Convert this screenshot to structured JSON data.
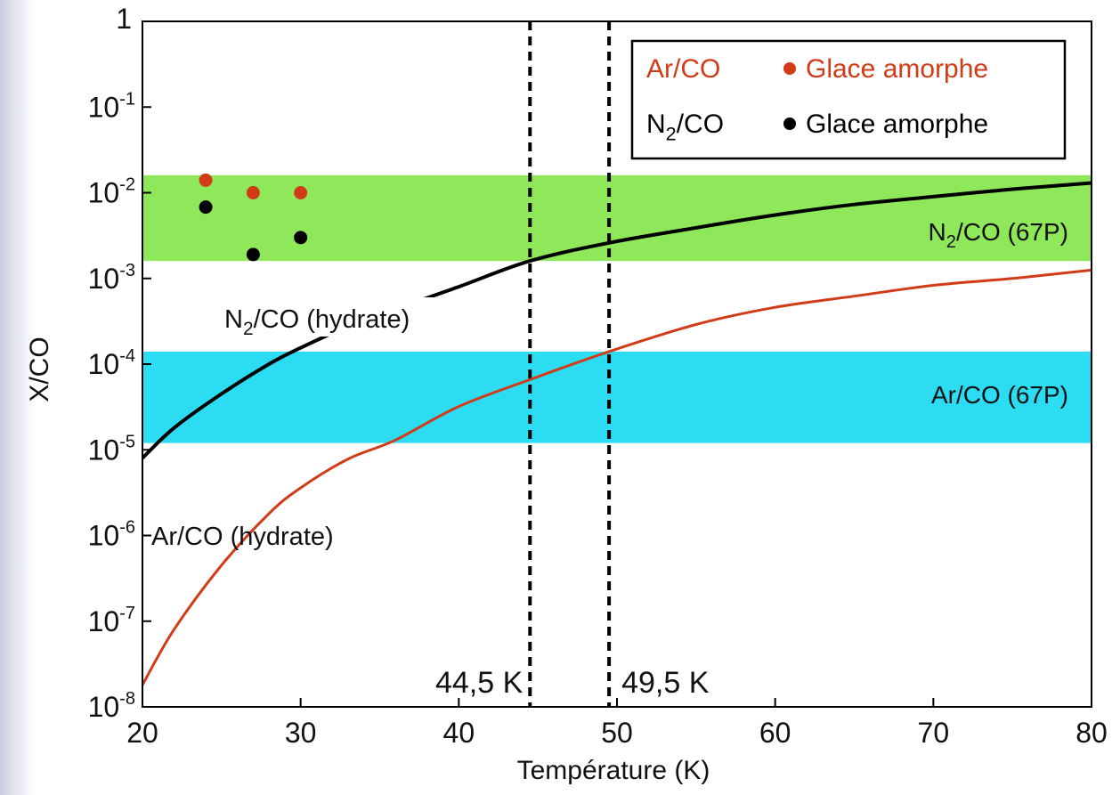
{
  "chart_data": {
    "type": "line",
    "xlabel": "Température (K)",
    "ylabel": "X/CO",
    "xlim": [
      20,
      80
    ],
    "ylim": [
      1e-08,
      1
    ],
    "yscale": "log",
    "grid": false,
    "x_ticks": [
      20,
      30,
      40,
      50,
      60,
      70,
      80
    ],
    "y_ticks": [
      {
        "value": 1,
        "base": "1",
        "exp": ""
      },
      {
        "value": 0.1,
        "base": "10",
        "exp": "-1"
      },
      {
        "value": 0.01,
        "base": "10",
        "exp": "-2"
      },
      {
        "value": 0.001,
        "base": "10",
        "exp": "-3"
      },
      {
        "value": 0.0001,
        "base": "10",
        "exp": "-4"
      },
      {
        "value": 1e-05,
        "base": "10",
        "exp": "-5"
      },
      {
        "value": 1e-06,
        "base": "10",
        "exp": "-6"
      },
      {
        "value": 1e-07,
        "base": "10",
        "exp": "-7"
      },
      {
        "value": 1e-08,
        "base": "10",
        "exp": "-8"
      }
    ],
    "bands": [
      {
        "name": "N2/CO (67P)",
        "label_main": "N",
        "label_sub": "2",
        "label_rest": "/CO (67P)",
        "y_range": [
          0.0016,
          0.016
        ],
        "color": "#8ee85a"
      },
      {
        "name": "Ar/CO (67P)",
        "label_main": "Ar/CO (67P)",
        "label_sub": "",
        "label_rest": "",
        "y_range": [
          1.2e-05,
          0.00014
        ],
        "color": "#2bdcf3"
      }
    ],
    "series": [
      {
        "name": "N2/CO (hydrate)",
        "label_main": "N",
        "label_sub": "2",
        "label_rest": "/CO (hydrate)",
        "color": "#000000",
        "x": [
          20,
          22,
          25,
          28,
          30,
          33,
          36,
          40,
          44.5,
          49.5,
          55,
          60,
          65,
          70,
          75,
          80
        ],
        "y": [
          8e-06,
          1.8e-05,
          4.5e-05,
          0.0001,
          0.000155,
          0.000275,
          0.00044,
          0.0008,
          0.0016,
          0.0026,
          0.0039,
          0.0055,
          0.0073,
          0.009,
          0.011,
          0.013
        ]
      },
      {
        "name": "Ar/CO (hydrate)",
        "label_main": "Ar/CO (hydrate)",
        "label_sub": "",
        "label_rest": "",
        "color": "#d23b17",
        "x": [
          20,
          22,
          25,
          28,
          30,
          33,
          36,
          40,
          44.5,
          49.5,
          55,
          60,
          65,
          70,
          75,
          80
        ],
        "y": [
          1.8e-08,
          8e-08,
          4.5e-07,
          1.8e-06,
          3.6e-06,
          7.8e-06,
          1.3e-05,
          3.2e-05,
          6.6e-05,
          0.00014,
          0.00029,
          0.00046,
          0.00062,
          0.00083,
          0.001,
          0.00125
        ]
      }
    ],
    "points": [
      {
        "name": "Ar/CO glace amorphe",
        "color": "#d23b17",
        "x": [
          24,
          27,
          30
        ],
        "y": [
          0.014,
          0.01,
          0.01
        ]
      },
      {
        "name": "N2/CO glace amorphe",
        "color": "#000000",
        "x": [
          24,
          27,
          30
        ],
        "y": [
          0.0068,
          0.0019,
          0.003
        ]
      }
    ],
    "vlines": [
      {
        "x": 44.5,
        "label": "44,5 K"
      },
      {
        "x": 49.5,
        "label": "49,5 K"
      }
    ],
    "legend": {
      "position": "top-right",
      "entries": [
        {
          "species_main": "Ar/CO",
          "species_sub": "",
          "species_rest": "",
          "text": "Glace amorphe",
          "color": "#d23b17"
        },
        {
          "species_main": "N",
          "species_sub": "2",
          "species_rest": "/CO",
          "text": "Glace amorphe",
          "color": "#000000"
        }
      ]
    }
  }
}
